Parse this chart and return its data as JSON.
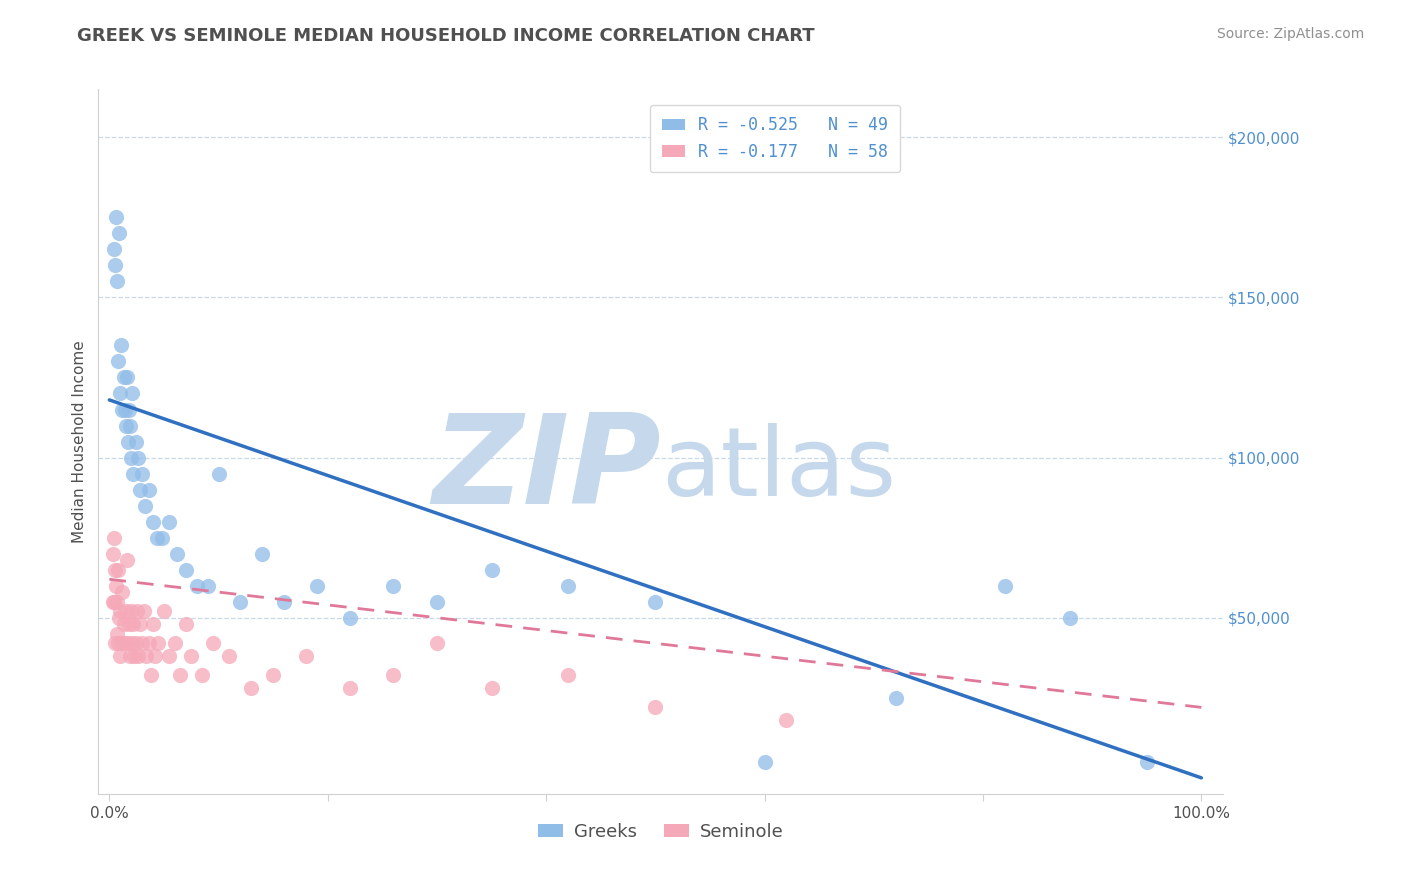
{
  "title": "GREEK VS SEMINOLE MEDIAN HOUSEHOLD INCOME CORRELATION CHART",
  "source": "Source: ZipAtlas.com",
  "ylabel": "Median Household Income",
  "watermark_zip": "ZIP",
  "watermark_atlas": "atlas",
  "legend_line1": "R = -0.525   N = 49",
  "legend_line2": "R = -0.177   N = 58",
  "legend_label1": "Greeks",
  "legend_label2": "Seminole",
  "greek_color": "#90bce8",
  "seminole_color": "#f5a8b8",
  "greek_trend_color": "#3070c0",
  "seminole_trend_color": "#e07898",
  "title_color": "#505050",
  "axis_label_color": "#5090d0",
  "source_color": "#909090",
  "watermark_color": "#c5d8ec",
  "background_color": "#ffffff",
  "grid_color": "#c8d8e8",
  "ylim": [
    -5000,
    215000
  ],
  "xlim": [
    -0.01,
    1.02
  ],
  "ytick_positions": [
    50000,
    100000,
    150000,
    200000
  ],
  "ytick_labels": [
    "$50,000",
    "$100,000",
    "$150,000",
    "$200,000"
  ],
  "xtick_positions": [
    0.0,
    0.2,
    0.4,
    0.6,
    0.8,
    1.0
  ],
  "xtick_labels": [
    "0.0%",
    "",
    "",
    "",
    "",
    "100.0%"
  ],
  "greek_x": [
    0.004,
    0.005,
    0.006,
    0.007,
    0.008,
    0.009,
    0.01,
    0.011,
    0.012,
    0.013,
    0.014,
    0.015,
    0.016,
    0.017,
    0.018,
    0.019,
    0.02,
    0.021,
    0.022,
    0.024,
    0.026,
    0.028,
    0.03,
    0.033,
    0.036,
    0.04,
    0.044,
    0.048,
    0.055,
    0.062,
    0.07,
    0.08,
    0.09,
    0.1,
    0.12,
    0.14,
    0.16,
    0.19,
    0.22,
    0.26,
    0.3,
    0.35,
    0.42,
    0.5,
    0.6,
    0.72,
    0.82,
    0.88,
    0.95
  ],
  "greek_y": [
    165000,
    160000,
    175000,
    155000,
    130000,
    170000,
    120000,
    135000,
    115000,
    125000,
    115000,
    110000,
    125000,
    105000,
    115000,
    110000,
    100000,
    120000,
    95000,
    105000,
    100000,
    90000,
    95000,
    85000,
    90000,
    80000,
    75000,
    75000,
    80000,
    70000,
    65000,
    60000,
    60000,
    95000,
    55000,
    70000,
    55000,
    60000,
    50000,
    60000,
    55000,
    65000,
    60000,
    55000,
    5000,
    25000,
    60000,
    50000,
    5000
  ],
  "seminole_x": [
    0.003,
    0.003,
    0.004,
    0.004,
    0.005,
    0.005,
    0.006,
    0.007,
    0.007,
    0.008,
    0.008,
    0.009,
    0.01,
    0.01,
    0.011,
    0.012,
    0.013,
    0.014,
    0.015,
    0.016,
    0.017,
    0.018,
    0.019,
    0.02,
    0.021,
    0.022,
    0.023,
    0.024,
    0.025,
    0.026,
    0.028,
    0.03,
    0.032,
    0.034,
    0.036,
    0.038,
    0.04,
    0.042,
    0.045,
    0.05,
    0.055,
    0.06,
    0.065,
    0.07,
    0.075,
    0.085,
    0.095,
    0.11,
    0.13,
    0.15,
    0.18,
    0.22,
    0.26,
    0.3,
    0.35,
    0.42,
    0.5,
    0.62
  ],
  "seminole_y": [
    70000,
    55000,
    75000,
    55000,
    65000,
    42000,
    60000,
    55000,
    45000,
    65000,
    42000,
    50000,
    52000,
    38000,
    42000,
    58000,
    48000,
    42000,
    52000,
    68000,
    42000,
    48000,
    38000,
    52000,
    42000,
    48000,
    38000,
    42000,
    52000,
    38000,
    48000,
    42000,
    52000,
    38000,
    42000,
    32000,
    48000,
    38000,
    42000,
    52000,
    38000,
    42000,
    32000,
    48000,
    38000,
    32000,
    42000,
    38000,
    28000,
    32000,
    38000,
    28000,
    32000,
    42000,
    28000,
    32000,
    22000,
    18000
  ],
  "greek_trend_x": [
    0.0,
    1.0
  ],
  "greek_trend_y": [
    118000,
    0
  ],
  "seminole_trend_x": [
    0.0,
    1.0
  ],
  "seminole_trend_y": [
    62000,
    22000
  ]
}
